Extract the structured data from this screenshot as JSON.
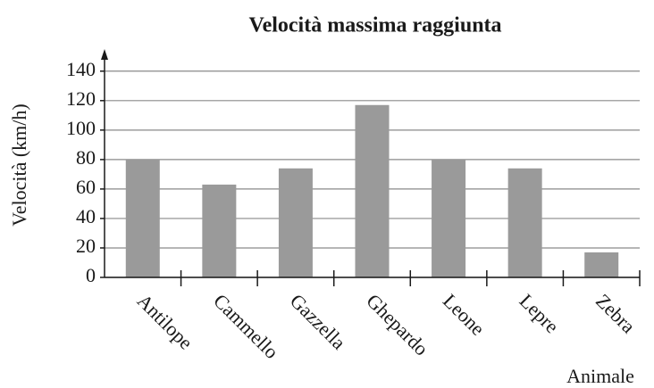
{
  "chart_data": {
    "type": "bar",
    "title": "Velocità massima raggiunta",
    "x_label": "Animale",
    "y_label": "Velocità (km/h)",
    "categories": [
      "Antilope",
      "Cammello",
      "Gazzella",
      "Ghepardo",
      "Leone",
      "Lepre",
      "Zebra"
    ],
    "values": [
      80,
      63,
      74,
      117,
      80,
      74,
      17
    ],
    "color": "#9a9a9a",
    "ylim": [
      0,
      155
    ],
    "yticks": [
      0,
      20,
      40,
      60,
      80,
      100,
      120,
      140
    ],
    "grid": true
  }
}
